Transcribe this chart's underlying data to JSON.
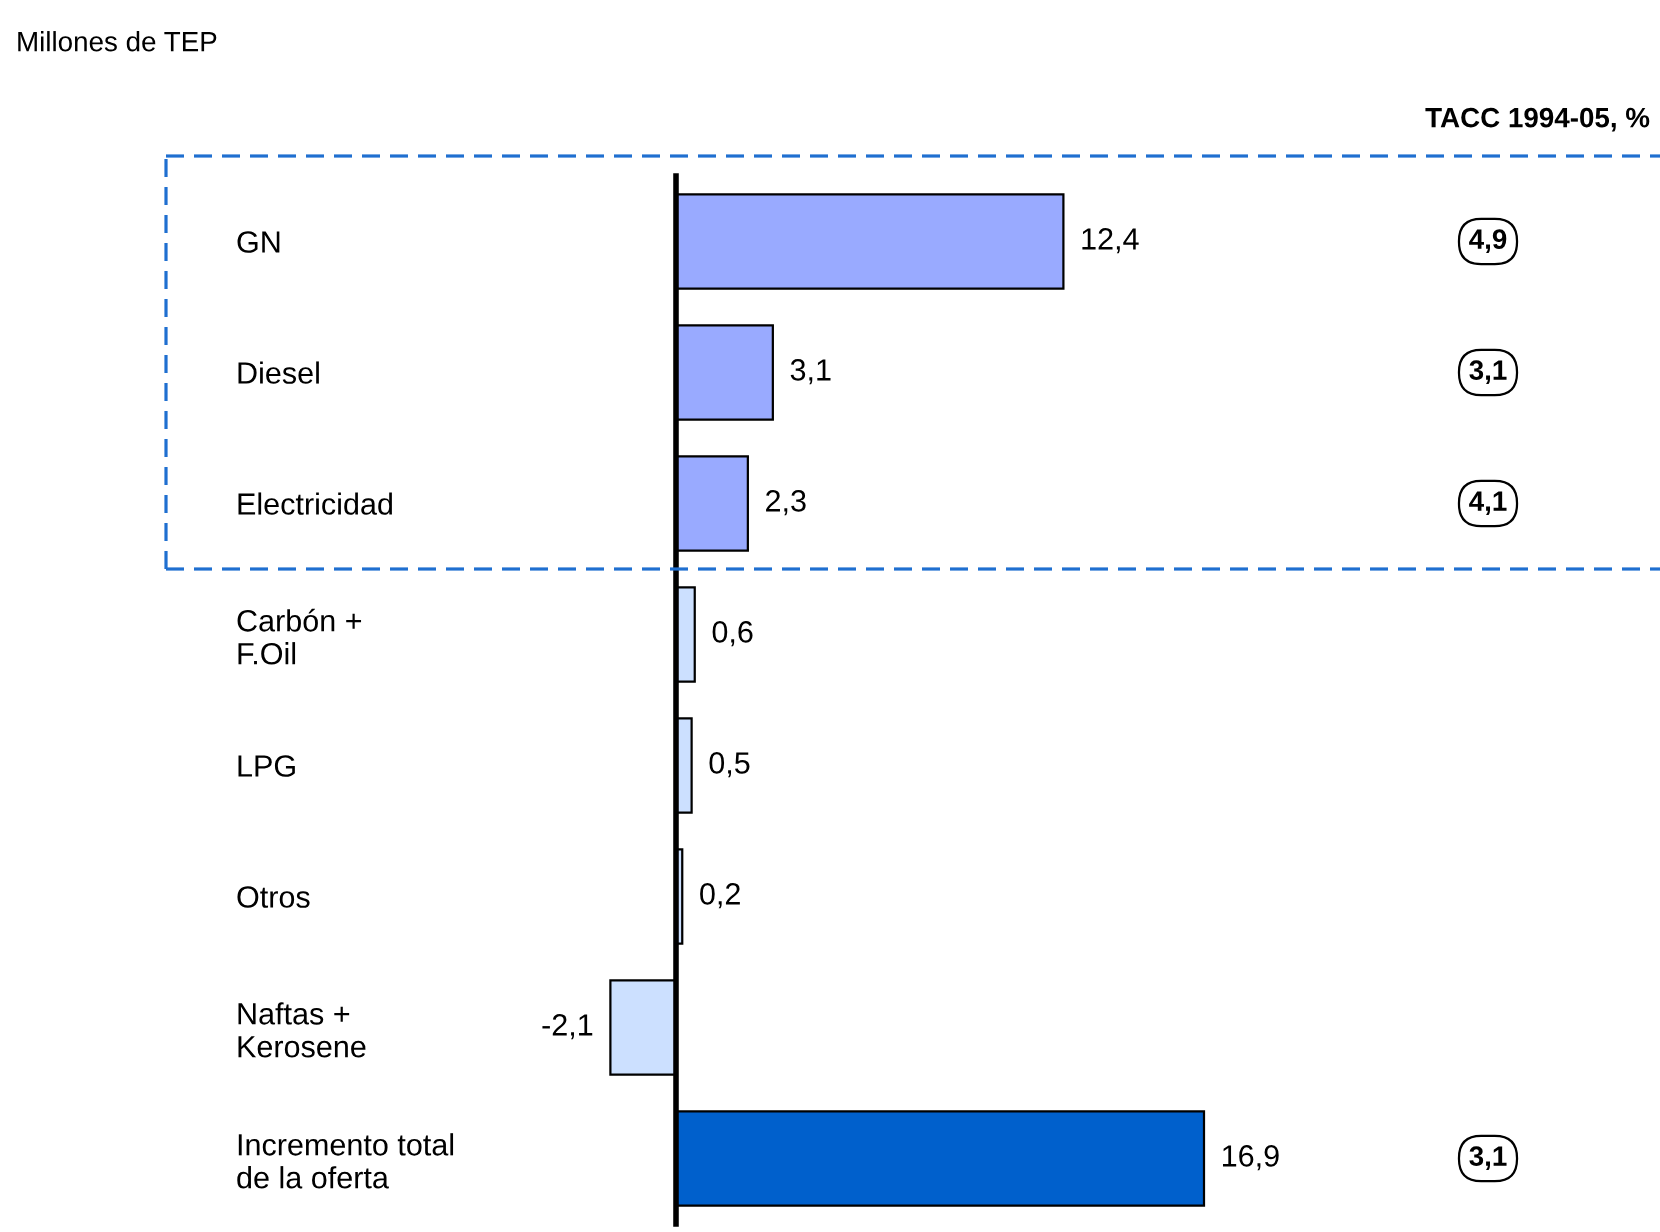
{
  "chart_data": {
    "type": "bar",
    "orientation": "horizontal",
    "title": "Millones de TEP",
    "categories": [
      "GN",
      "Diesel",
      "Electricidad",
      "Carbón +\nF.Oil",
      "LPG",
      "Otros",
      "Naftas +\nKerosene",
      "Incremento total\nde la oferta"
    ],
    "values": [
      12.4,
      3.1,
      2.3,
      0.6,
      0.5,
      0.2,
      -2.1,
      16.9
    ],
    "value_labels": [
      "12,4",
      "3,1",
      "2,3",
      "0,6",
      "0,5",
      "0,2",
      "-2,1",
      "16,9"
    ],
    "colors": [
      "#99aaff",
      "#99aaff",
      "#99aaff",
      "#cce0ff",
      "#cce0ff",
      "#cce0ff",
      "#cce0ff",
      "#0060cc"
    ],
    "annotations": [
      "TACC 1994-05, %",
      "4,9",
      "3,1",
      "4,1",
      "3,1"
    ],
    "grid": false
  }
}
